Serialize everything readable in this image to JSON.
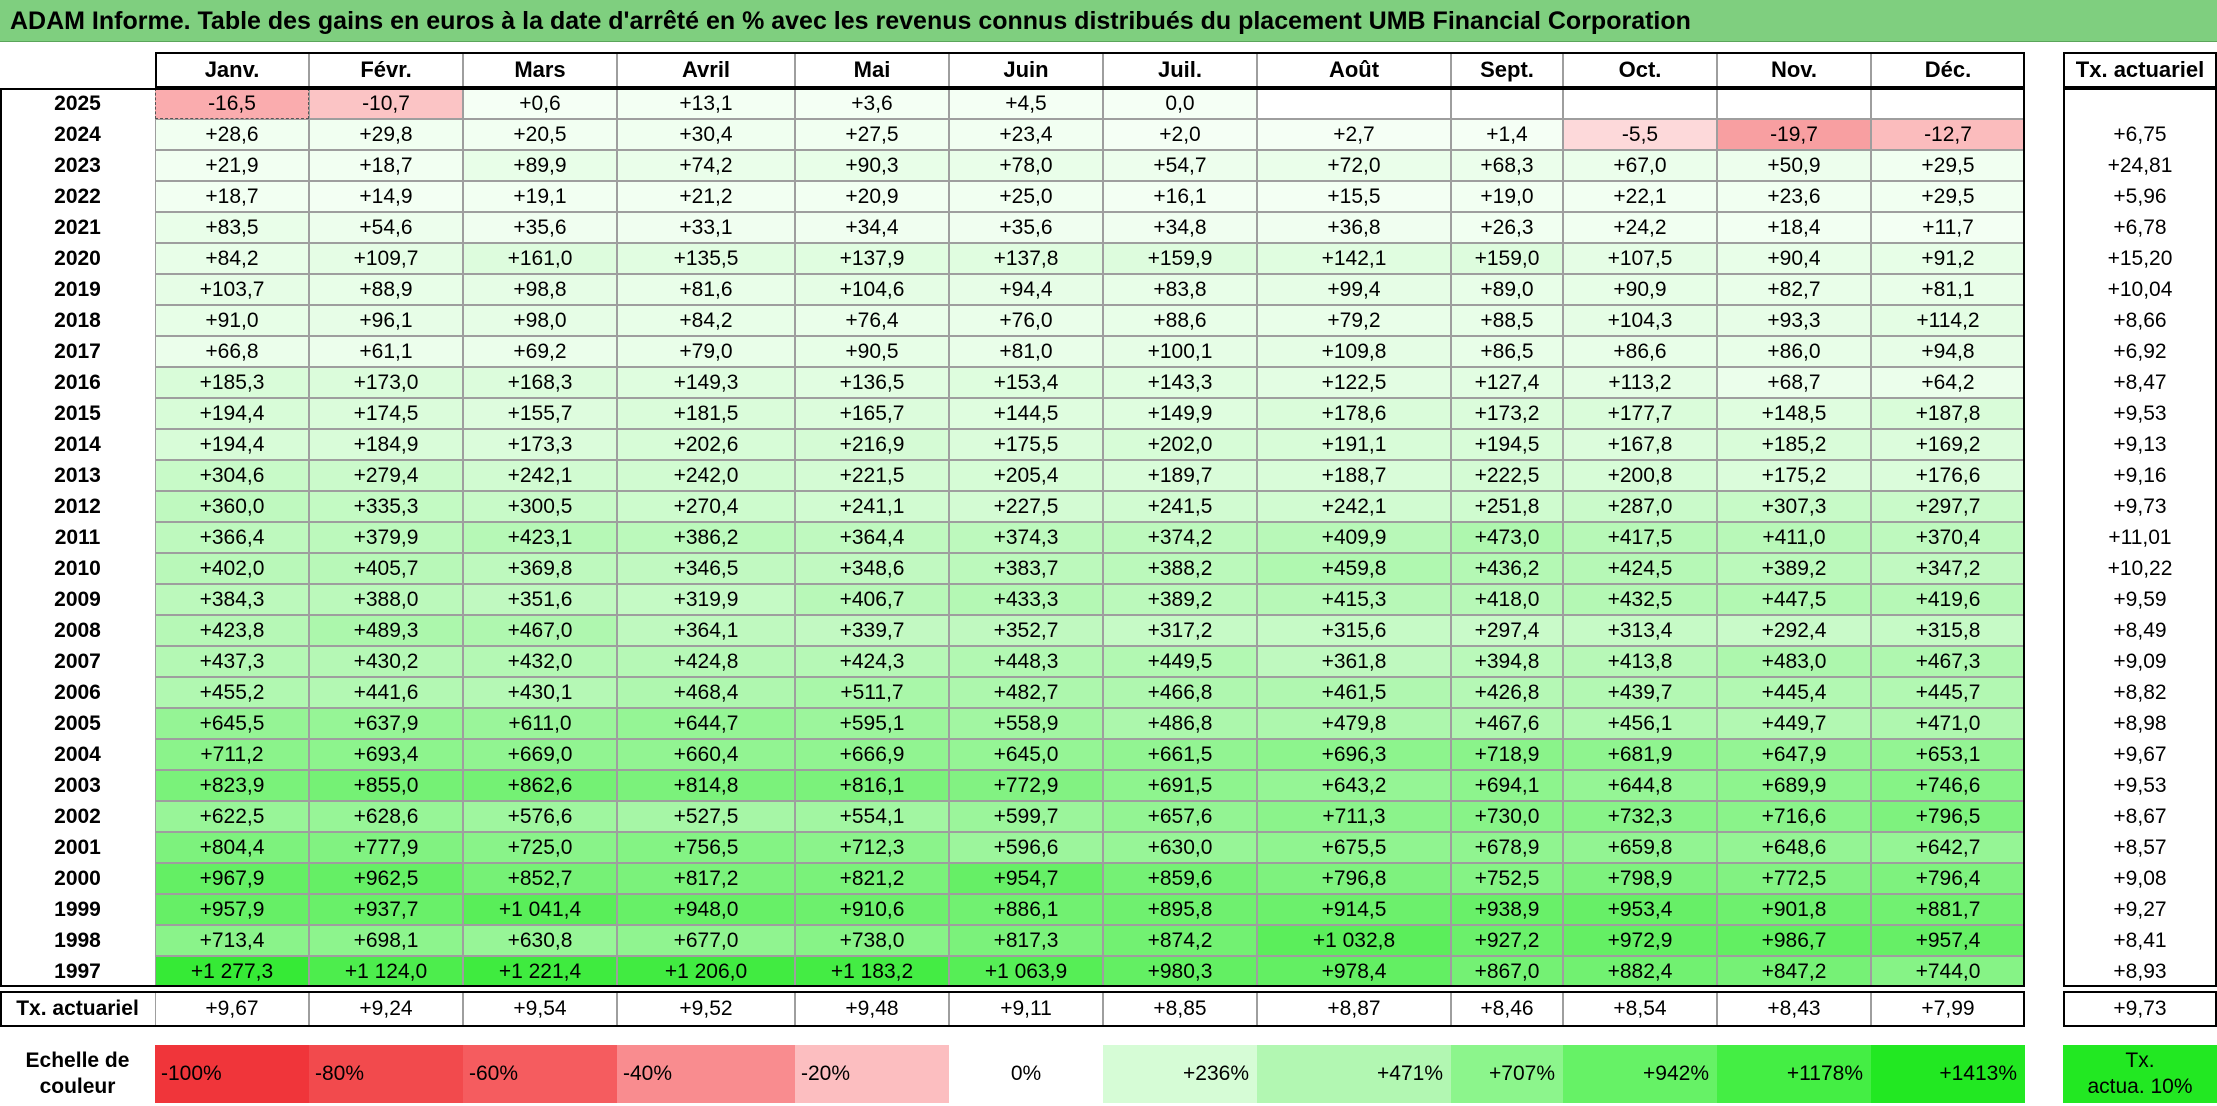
{
  "title": "ADAM Informe. Table des gains en euros à la date d'arrêté en % avec les revenus connus distribués du placement UMB Financial Corporation",
  "months": [
    "Janv.",
    "Févr.",
    "Mars",
    "Avril",
    "Mai",
    "Juin",
    "Juil.",
    "Août",
    "Sept.",
    "Oct.",
    "Nov.",
    "Déc."
  ],
  "rate_header": "Tx. actuariel",
  "rows": [
    {
      "year": "2025",
      "values": [
        "-16,5",
        "-10,7",
        "+0,6",
        "+13,1",
        "+3,6",
        "+4,5",
        "0,0",
        "",
        "",
        "",
        "",
        ""
      ],
      "rate": ""
    },
    {
      "year": "2024",
      "values": [
        "+28,6",
        "+29,8",
        "+20,5",
        "+30,4",
        "+27,5",
        "+23,4",
        "+2,0",
        "+2,7",
        "+1,4",
        "-5,5",
        "-19,7",
        "-12,7"
      ],
      "rate": "+6,75"
    },
    {
      "year": "2023",
      "values": [
        "+21,9",
        "+18,7",
        "+89,9",
        "+74,2",
        "+90,3",
        "+78,0",
        "+54,7",
        "+72,0",
        "+68,3",
        "+67,0",
        "+50,9",
        "+29,5"
      ],
      "rate": "+24,81"
    },
    {
      "year": "2022",
      "values": [
        "+18,7",
        "+14,9",
        "+19,1",
        "+21,2",
        "+20,9",
        "+25,0",
        "+16,1",
        "+15,5",
        "+19,0",
        "+22,1",
        "+23,6",
        "+29,5"
      ],
      "rate": "+5,96"
    },
    {
      "year": "2021",
      "values": [
        "+83,5",
        "+54,6",
        "+35,6",
        "+33,1",
        "+34,4",
        "+35,6",
        "+34,8",
        "+36,8",
        "+26,3",
        "+24,2",
        "+18,4",
        "+11,7"
      ],
      "rate": "+6,78"
    },
    {
      "year": "2020",
      "values": [
        "+84,2",
        "+109,7",
        "+161,0",
        "+135,5",
        "+137,9",
        "+137,8",
        "+159,9",
        "+142,1",
        "+159,0",
        "+107,5",
        "+90,4",
        "+91,2"
      ],
      "rate": "+15,20"
    },
    {
      "year": "2019",
      "values": [
        "+103,7",
        "+88,9",
        "+98,8",
        "+81,6",
        "+104,6",
        "+94,4",
        "+83,8",
        "+99,4",
        "+89,0",
        "+90,9",
        "+82,7",
        "+81,1"
      ],
      "rate": "+10,04"
    },
    {
      "year": "2018",
      "values": [
        "+91,0",
        "+96,1",
        "+98,0",
        "+84,2",
        "+76,4",
        "+76,0",
        "+88,6",
        "+79,2",
        "+88,5",
        "+104,3",
        "+93,3",
        "+114,2"
      ],
      "rate": "+8,66"
    },
    {
      "year": "2017",
      "values": [
        "+66,8",
        "+61,1",
        "+69,2",
        "+79,0",
        "+90,5",
        "+81,0",
        "+100,1",
        "+109,8",
        "+86,5",
        "+86,6",
        "+86,0",
        "+94,8"
      ],
      "rate": "+6,92"
    },
    {
      "year": "2016",
      "values": [
        "+185,3",
        "+173,0",
        "+168,3",
        "+149,3",
        "+136,5",
        "+153,4",
        "+143,3",
        "+122,5",
        "+127,4",
        "+113,2",
        "+68,7",
        "+64,2"
      ],
      "rate": "+8,47"
    },
    {
      "year": "2015",
      "values": [
        "+194,4",
        "+174,5",
        "+155,7",
        "+181,5",
        "+165,7",
        "+144,5",
        "+149,9",
        "+178,6",
        "+173,2",
        "+177,7",
        "+148,5",
        "+187,8"
      ],
      "rate": "+9,53"
    },
    {
      "year": "2014",
      "values": [
        "+194,4",
        "+184,9",
        "+173,3",
        "+202,6",
        "+216,9",
        "+175,5",
        "+202,0",
        "+191,1",
        "+194,5",
        "+167,8",
        "+185,2",
        "+169,2"
      ],
      "rate": "+9,13"
    },
    {
      "year": "2013",
      "values": [
        "+304,6",
        "+279,4",
        "+242,1",
        "+242,0",
        "+221,5",
        "+205,4",
        "+189,7",
        "+188,7",
        "+222,5",
        "+200,8",
        "+175,2",
        "+176,6"
      ],
      "rate": "+9,16"
    },
    {
      "year": "2012",
      "values": [
        "+360,0",
        "+335,3",
        "+300,5",
        "+270,4",
        "+241,1",
        "+227,5",
        "+241,5",
        "+242,1",
        "+251,8",
        "+287,0",
        "+307,3",
        "+297,7"
      ],
      "rate": "+9,73"
    },
    {
      "year": "2011",
      "values": [
        "+366,4",
        "+379,9",
        "+423,1",
        "+386,2",
        "+364,4",
        "+374,3",
        "+374,2",
        "+409,9",
        "+473,0",
        "+417,5",
        "+411,0",
        "+370,4"
      ],
      "rate": "+11,01"
    },
    {
      "year": "2010",
      "values": [
        "+402,0",
        "+405,7",
        "+369,8",
        "+346,5",
        "+348,6",
        "+383,7",
        "+388,2",
        "+459,8",
        "+436,2",
        "+424,5",
        "+389,2",
        "+347,2"
      ],
      "rate": "+10,22"
    },
    {
      "year": "2009",
      "values": [
        "+384,3",
        "+388,0",
        "+351,6",
        "+319,9",
        "+406,7",
        "+433,3",
        "+389,2",
        "+415,3",
        "+418,0",
        "+432,5",
        "+447,5",
        "+419,6"
      ],
      "rate": "+9,59"
    },
    {
      "year": "2008",
      "values": [
        "+423,8",
        "+489,3",
        "+467,0",
        "+364,1",
        "+339,7",
        "+352,7",
        "+317,2",
        "+315,6",
        "+297,4",
        "+313,4",
        "+292,4",
        "+315,8"
      ],
      "rate": "+8,49"
    },
    {
      "year": "2007",
      "values": [
        "+437,3",
        "+430,2",
        "+432,0",
        "+424,8",
        "+424,3",
        "+448,3",
        "+449,5",
        "+361,8",
        "+394,8",
        "+413,8",
        "+483,0",
        "+467,3"
      ],
      "rate": "+9,09"
    },
    {
      "year": "2006",
      "values": [
        "+455,2",
        "+441,6",
        "+430,1",
        "+468,4",
        "+511,7",
        "+482,7",
        "+466,8",
        "+461,5",
        "+426,8",
        "+439,7",
        "+445,4",
        "+445,7"
      ],
      "rate": "+8,82"
    },
    {
      "year": "2005",
      "values": [
        "+645,5",
        "+637,9",
        "+611,0",
        "+644,7",
        "+595,1",
        "+558,9",
        "+486,8",
        "+479,8",
        "+467,6",
        "+456,1",
        "+449,7",
        "+471,0"
      ],
      "rate": "+8,98"
    },
    {
      "year": "2004",
      "values": [
        "+711,2",
        "+693,4",
        "+669,0",
        "+660,4",
        "+666,9",
        "+645,0",
        "+661,5",
        "+696,3",
        "+718,9",
        "+681,9",
        "+647,9",
        "+653,1"
      ],
      "rate": "+9,67"
    },
    {
      "year": "2003",
      "values": [
        "+823,9",
        "+855,0",
        "+862,6",
        "+814,8",
        "+816,1",
        "+772,9",
        "+691,5",
        "+643,2",
        "+694,1",
        "+644,8",
        "+689,9",
        "+746,6"
      ],
      "rate": "+9,53"
    },
    {
      "year": "2002",
      "values": [
        "+622,5",
        "+628,6",
        "+576,6",
        "+527,5",
        "+554,1",
        "+599,7",
        "+657,6",
        "+711,3",
        "+730,0",
        "+732,3",
        "+716,6",
        "+796,5"
      ],
      "rate": "+8,67"
    },
    {
      "year": "2001",
      "values": [
        "+804,4",
        "+777,9",
        "+725,0",
        "+756,5",
        "+712,3",
        "+596,6",
        "+630,0",
        "+675,5",
        "+678,9",
        "+659,8",
        "+648,6",
        "+642,7"
      ],
      "rate": "+8,57"
    },
    {
      "year": "2000",
      "values": [
        "+967,9",
        "+962,5",
        "+852,7",
        "+817,2",
        "+821,2",
        "+954,7",
        "+859,6",
        "+796,8",
        "+752,5",
        "+798,9",
        "+772,5",
        "+796,4"
      ],
      "rate": "+9,08"
    },
    {
      "year": "1999",
      "values": [
        "+957,9",
        "+937,7",
        "+1 041,4",
        "+948,0",
        "+910,6",
        "+886,1",
        "+895,8",
        "+914,5",
        "+938,9",
        "+953,4",
        "+901,8",
        "+881,7"
      ],
      "rate": "+9,27"
    },
    {
      "year": "1998",
      "values": [
        "+713,4",
        "+698,1",
        "+630,8",
        "+677,0",
        "+738,0",
        "+817,3",
        "+874,2",
        "+1 032,8",
        "+927,2",
        "+972,9",
        "+986,7",
        "+957,4"
      ],
      "rate": "+8,41"
    },
    {
      "year": "1997",
      "values": [
        "+1 277,3",
        "+1 124,0",
        "+1 221,4",
        "+1 206,0",
        "+1 183,2",
        "+1 063,9",
        "+980,3",
        "+978,4",
        "+867,0",
        "+882,4",
        "+847,2",
        "+744,0"
      ],
      "rate": "+8,93"
    }
  ],
  "footer": {
    "label": "Tx. actuariel",
    "values": [
      "+9,67",
      "+9,24",
      "+9,54",
      "+9,52",
      "+9,48",
      "+9,11",
      "+8,85",
      "+8,87",
      "+8,46",
      "+8,54",
      "+8,43",
      "+7,99"
    ],
    "rate": "+9,73"
  },
  "legend": {
    "label_line1": "Echelle de",
    "label_line2": "couleur",
    "scale": [
      {
        "label": "-100%",
        "color": "#f0353a"
      },
      {
        "label": "-80%",
        "color": "#f24a4d"
      },
      {
        "label": "-60%",
        "color": "#f55c5f"
      },
      {
        "label": "-40%",
        "color": "#f98c8f"
      },
      {
        "label": "-20%",
        "color": "#fcbec0"
      },
      {
        "label": "0%",
        "color": "#ffffff"
      },
      {
        "label": "+236%",
        "color": "#d6fcd6"
      },
      {
        "label": "+471%",
        "color": "#b2f7b2"
      },
      {
        "label": "+707%",
        "color": "#8cf58c"
      },
      {
        "label": "+942%",
        "color": "#66f266"
      },
      {
        "label": "+1178%",
        "color": "#44ee44"
      },
      {
        "label": "+1413%",
        "color": "#22e822"
      }
    ],
    "rate_line1": "Tx.",
    "rate_line2": "actua. 10%",
    "rate_color": "#22e822"
  }
}
